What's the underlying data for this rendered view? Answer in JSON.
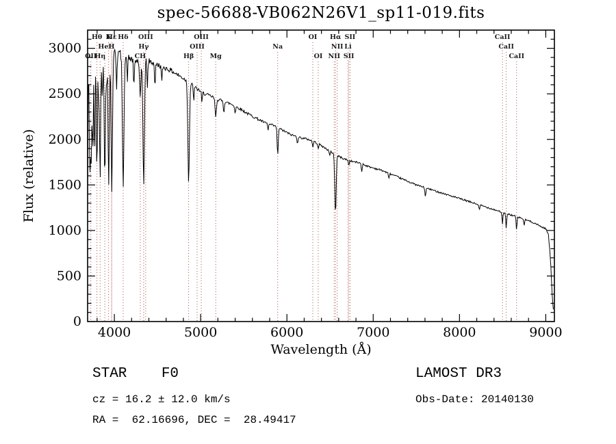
{
  "chart_data": {
    "type": "line",
    "title": "spec-56688-VB062N26V1_sp11-019.fits",
    "xlabel": "Wavelength (Å)",
    "ylabel": "Flux (relative)",
    "xlim": [
      3690,
      9100
    ],
    "ylim": [
      0,
      3200
    ],
    "x_ticks": [
      4000,
      5000,
      6000,
      7000,
      8000,
      9000
    ],
    "x_minor_step": 200,
    "y_ticks": [
      0,
      500,
      1000,
      1500,
      2000,
      2500,
      3000
    ],
    "y_minor_step": 100,
    "grid": false,
    "colors": {
      "spectrum": "#000000",
      "marker": "#a8524a",
      "label": "#1a1a1a"
    },
    "spectral_lines": [
      {
        "label": "Hθ",
        "wl": 3798,
        "row": 0
      },
      {
        "label": "K",
        "wl": 3933,
        "row": 0
      },
      {
        "label": "Hε",
        "wl": 3970,
        "row": 0
      },
      {
        "label": "Hδ",
        "wl": 4102,
        "row": 0
      },
      {
        "label": "OIII",
        "wl": 4363,
        "row": 0
      },
      {
        "label": "OIII",
        "wl": 5007,
        "row": 0
      },
      {
        "label": "OI",
        "wl": 6300,
        "row": 0
      },
      {
        "label": "Hα",
        "wl": 6563,
        "row": 0
      },
      {
        "label": "SII",
        "wl": 6731,
        "row": 0
      },
      {
        "label": "CaII",
        "wl": 8498,
        "row": 0
      },
      {
        "label": "HeI",
        "wl": 3889,
        "row": 1
      },
      {
        "label": "H",
        "wl": 3968,
        "row": 1
      },
      {
        "label": "Hγ",
        "wl": 4340,
        "row": 1
      },
      {
        "label": "OIII",
        "wl": 4959,
        "row": 1
      },
      {
        "label": "Na",
        "wl": 5893,
        "row": 1
      },
      {
        "label": "NII",
        "wl": 6583,
        "row": 1
      },
      {
        "label": "Li",
        "wl": 6708,
        "row": 1
      },
      {
        "label": "CaII",
        "wl": 8542,
        "row": 1
      },
      {
        "label": "OII",
        "wl": 3727,
        "row": 2
      },
      {
        "label": "Hη",
        "wl": 3835,
        "row": 2
      },
      {
        "label": "CH",
        "wl": 4300,
        "row": 2
      },
      {
        "label": "Hβ",
        "wl": 4861,
        "row": 2
      },
      {
        "label": "Mg",
        "wl": 5175,
        "row": 2
      },
      {
        "label": "OI",
        "wl": 6363,
        "row": 2
      },
      {
        "label": "NII",
        "wl": 6548,
        "row": 2
      },
      {
        "label": "SII",
        "wl": 6717,
        "row": 2
      },
      {
        "label": "CaII",
        "wl": 8662,
        "row": 2
      }
    ],
    "continuum": [
      [
        3690,
        1300
      ],
      [
        3697,
        2600
      ],
      [
        3705,
        2840
      ],
      [
        3750,
        2890
      ],
      [
        3850,
        2920
      ],
      [
        3950,
        2950
      ],
      [
        4050,
        2950
      ],
      [
        4150,
        2900
      ],
      [
        4250,
        2860
      ],
      [
        4350,
        2880
      ],
      [
        4450,
        2840
      ],
      [
        4550,
        2800
      ],
      [
        4650,
        2760
      ],
      [
        4750,
        2700
      ],
      [
        4850,
        2640
      ],
      [
        4950,
        2560
      ],
      [
        5050,
        2500
      ],
      [
        5150,
        2460
      ],
      [
        5250,
        2420
      ],
      [
        5350,
        2390
      ],
      [
        5450,
        2340
      ],
      [
        5550,
        2280
      ],
      [
        5650,
        2230
      ],
      [
        5750,
        2180
      ],
      [
        5850,
        2150
      ],
      [
        5950,
        2100
      ],
      [
        6050,
        2050
      ],
      [
        6150,
        2020
      ],
      [
        6250,
        2000
      ],
      [
        6350,
        1960
      ],
      [
        6450,
        1900
      ],
      [
        6550,
        1840
      ],
      [
        6650,
        1790
      ],
      [
        6750,
        1760
      ],
      [
        6850,
        1740
      ],
      [
        6950,
        1700
      ],
      [
        7100,
        1660
      ],
      [
        7300,
        1580
      ],
      [
        7500,
        1500
      ],
      [
        7700,
        1440
      ],
      [
        7900,
        1380
      ],
      [
        8100,
        1320
      ],
      [
        8300,
        1260
      ],
      [
        8500,
        1200
      ],
      [
        8700,
        1140
      ],
      [
        8850,
        1090
      ],
      [
        8950,
        1040
      ],
      [
        9000,
        1020
      ],
      [
        9030,
        960
      ],
      [
        9055,
        680
      ],
      [
        9075,
        280
      ],
      [
        9090,
        100
      ]
    ],
    "absorption_lines": [
      [
        3712,
        900,
        5
      ],
      [
        3722,
        1000,
        5
      ],
      [
        3734,
        1050,
        5
      ],
      [
        3750,
        1150,
        5
      ],
      [
        3771,
        1200,
        5
      ],
      [
        3798,
        1300,
        6
      ],
      [
        3820,
        500,
        5
      ],
      [
        3835,
        1350,
        6
      ],
      [
        3860,
        450,
        5
      ],
      [
        3889,
        1350,
        7
      ],
      [
        3910,
        400,
        5
      ],
      [
        3934,
        1450,
        7
      ],
      [
        3970,
        1500,
        8
      ],
      [
        4026,
        380,
        5
      ],
      [
        4102,
        1420,
        9
      ],
      [
        4150,
        250,
        5
      ],
      [
        4226,
        320,
        5
      ],
      [
        4300,
        420,
        8
      ],
      [
        4340,
        1350,
        9
      ],
      [
        4383,
        300,
        5
      ],
      [
        4471,
        260,
        5
      ],
      [
        4550,
        180,
        5
      ],
      [
        4861,
        1100,
        9
      ],
      [
        4920,
        150,
        5
      ],
      [
        5015,
        120,
        5
      ],
      [
        5175,
        200,
        8
      ],
      [
        5269,
        120,
        5
      ],
      [
        5400,
        80,
        5
      ],
      [
        5782,
        70,
        5
      ],
      [
        5893,
        310,
        6
      ],
      [
        6122,
        70,
        5
      ],
      [
        6300,
        70,
        5
      ],
      [
        6363,
        50,
        5
      ],
      [
        6495,
        60,
        5
      ],
      [
        6563,
        640,
        8
      ],
      [
        6717,
        55,
        5
      ],
      [
        6867,
        90,
        5
      ],
      [
        7180,
        60,
        5
      ],
      [
        7605,
        90,
        6
      ],
      [
        8230,
        60,
        5
      ],
      [
        8498,
        140,
        5
      ],
      [
        8542,
        170,
        5
      ],
      [
        8662,
        150,
        5
      ],
      [
        8750,
        70,
        5
      ]
    ],
    "noise": {
      "seed": 42,
      "base": 9,
      "amp": 60,
      "decay": 800
    }
  },
  "footer": {
    "classification": "STAR    F0",
    "survey": "LAMOST DR3",
    "cz": "cz = 16.2 ± 12.0 km/s",
    "obs_date": "Obs-Date: 20140130",
    "coordinates": "RA =  62.16696, DEC =  28.49417"
  }
}
